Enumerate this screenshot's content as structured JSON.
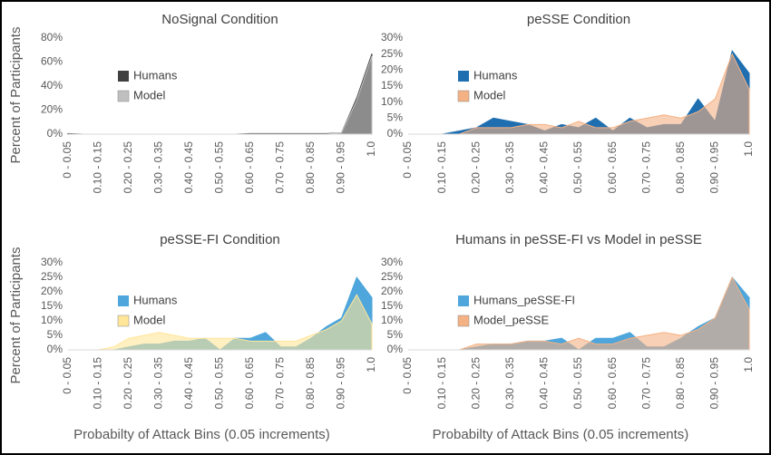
{
  "chart_data": [
    {
      "type": "area",
      "title": "NoSignal Condition",
      "y_label": "Percent of Participants",
      "categories": [
        "0 - 0.05",
        null,
        "0.10 - 0.15",
        null,
        "0.20 - 0.25",
        null,
        "0.30 - 0.35",
        null,
        "0.40 - 0.45",
        null,
        "0.50 - 0.55",
        null,
        "0.60 - 0.65",
        null,
        "0.70 - 0.75",
        null,
        "0.80 - 0.85",
        null,
        "0.90 - 0.95",
        null,
        "1.0"
      ],
      "ylim": [
        0,
        80
      ],
      "yticks": [
        {
          "value": 0,
          "label": "0%"
        },
        {
          "value": 20,
          "label": "20%"
        },
        {
          "value": 40,
          "label": "40%"
        },
        {
          "value": 60,
          "label": "60%"
        },
        {
          "value": 80,
          "label": "80%"
        }
      ],
      "grid": false,
      "legend": "upper left",
      "series": [
        {
          "name": "Humans",
          "color": "#404040",
          "values": [
            0.5,
            0,
            0,
            0,
            0,
            0,
            0,
            0,
            0,
            0,
            0,
            0,
            0.5,
            0.5,
            0.5,
            0.5,
            0.5,
            0.5,
            1,
            30,
            67
          ]
        },
        {
          "name": "Model",
          "color": "#bfbfbf",
          "values": [
            0,
            0,
            0,
            0,
            0,
            0,
            0,
            0,
            0,
            0,
            0,
            0,
            0,
            0,
            0,
            0,
            0,
            0,
            1,
            28,
            65
          ]
        }
      ]
    },
    {
      "type": "area",
      "title": "peSSE Condition",
      "categories": [
        "0 - 0.05",
        null,
        "0.10 - 0.15",
        null,
        "0.20 - 0.25",
        null,
        "0.30 - 0.35",
        null,
        "0.40 - 0.45",
        null,
        "0.50 - 0.55",
        null,
        "0.60 - 0.65",
        null,
        "0.70 - 0.75",
        null,
        "0.80 - 0.85",
        null,
        "0.90 - 0.95",
        null,
        "1.0"
      ],
      "ylim": [
        0,
        30
      ],
      "yticks": [
        {
          "value": 0,
          "label": "0%"
        },
        {
          "value": 5,
          "label": "5%"
        },
        {
          "value": 10,
          "label": "10%"
        },
        {
          "value": 15,
          "label": "15%"
        },
        {
          "value": 20,
          "label": "20%"
        },
        {
          "value": 25,
          "label": "25%"
        },
        {
          "value": 30,
          "label": "30%"
        }
      ],
      "grid": false,
      "legend": "upper left",
      "series": [
        {
          "name": "Humans",
          "color": "#1f6fb0",
          "values": [
            0,
            0,
            0,
            1,
            2,
            5,
            4,
            3,
            1,
            3,
            2,
            5,
            1,
            5,
            2,
            3,
            3,
            11,
            4,
            26,
            19
          ]
        },
        {
          "name": "Model",
          "color": "#f4b183",
          "values": [
            0,
            0,
            0,
            0,
            2,
            2,
            2,
            3,
            3,
            2,
            4,
            2,
            2,
            4,
            5,
            6,
            5,
            7,
            11,
            25,
            14
          ]
        }
      ]
    },
    {
      "type": "area",
      "title": "peSSE-FI Condition",
      "y_label": "Percent of Participants",
      "x_label": "Probabilty of Attack Bins (0.05 increments)",
      "categories": [
        "0 - 0.05",
        null,
        "0.10 - 0.15",
        null,
        "0.20 - 0.25",
        null,
        "0.30 - 0.35",
        null,
        "0.40 - 0.45",
        null,
        "0.50 - 0.55",
        null,
        "0.60 - 0.65",
        null,
        "0.70 - 0.75",
        null,
        "0.80 - 0.85",
        null,
        "0.90 - 0.95",
        null,
        "1.0"
      ],
      "ylim": [
        0,
        30
      ],
      "yticks": [
        {
          "value": 0,
          "label": "0%"
        },
        {
          "value": 5,
          "label": "5%"
        },
        {
          "value": 10,
          "label": "10%"
        },
        {
          "value": 15,
          "label": "15%"
        },
        {
          "value": 20,
          "label": "20%"
        },
        {
          "value": 25,
          "label": "25%"
        },
        {
          "value": 30,
          "label": "30%"
        }
      ],
      "grid": false,
      "legend": "upper left",
      "series": [
        {
          "name": "Humans",
          "color": "#4ea6dc",
          "values": [
            0,
            0,
            0,
            0,
            1,
            2,
            2,
            3,
            3,
            4,
            0,
            4,
            4,
            6,
            1,
            1,
            4,
            8,
            11,
            25,
            18
          ]
        },
        {
          "name": "Model",
          "color": "#ffe699",
          "values": [
            0,
            0,
            0,
            1,
            4,
            5,
            6,
            5,
            4,
            4,
            4,
            4,
            3,
            3,
            3,
            3,
            5,
            7,
            10,
            19,
            9
          ]
        }
      ]
    },
    {
      "type": "area",
      "title": "Humans in peSSE-FI vs Model in peSSE",
      "x_label": "Probabilty of Attack Bins (0.05 increments)",
      "categories": [
        "0 - 0.05",
        null,
        "0.10 - 0.15",
        null,
        "0.20 - 0.25",
        null,
        "0.30 - 0.35",
        null,
        "0.40 - 0.45",
        null,
        "0.50 - 0.55",
        null,
        "0.60 - 0.65",
        null,
        "0.70 - 0.75",
        null,
        "0.80 - 0.85",
        null,
        "0.90 - 0.95",
        null,
        "1.0"
      ],
      "ylim": [
        0,
        30
      ],
      "yticks": [
        {
          "value": 0,
          "label": "0%"
        },
        {
          "value": 5,
          "label": "5%"
        },
        {
          "value": 10,
          "label": "10%"
        },
        {
          "value": 15,
          "label": "15%"
        },
        {
          "value": 20,
          "label": "20%"
        },
        {
          "value": 25,
          "label": "25%"
        },
        {
          "value": 30,
          "label": "30%"
        }
      ],
      "grid": false,
      "legend": "upper left",
      "series": [
        {
          "name": "Humans_peSSE-FI",
          "color": "#4ea6dc",
          "values": [
            0,
            0,
            0,
            0,
            1,
            2,
            2,
            3,
            3,
            4,
            0,
            4,
            4,
            6,
            1,
            1,
            4,
            8,
            11,
            25,
            18
          ]
        },
        {
          "name": "Model_peSSE",
          "color": "#f4b183",
          "values": [
            0,
            0,
            0,
            0,
            2,
            2,
            2,
            3,
            3,
            2,
            4,
            2,
            2,
            4,
            5,
            6,
            5,
            7,
            11,
            25,
            14
          ]
        }
      ]
    }
  ]
}
